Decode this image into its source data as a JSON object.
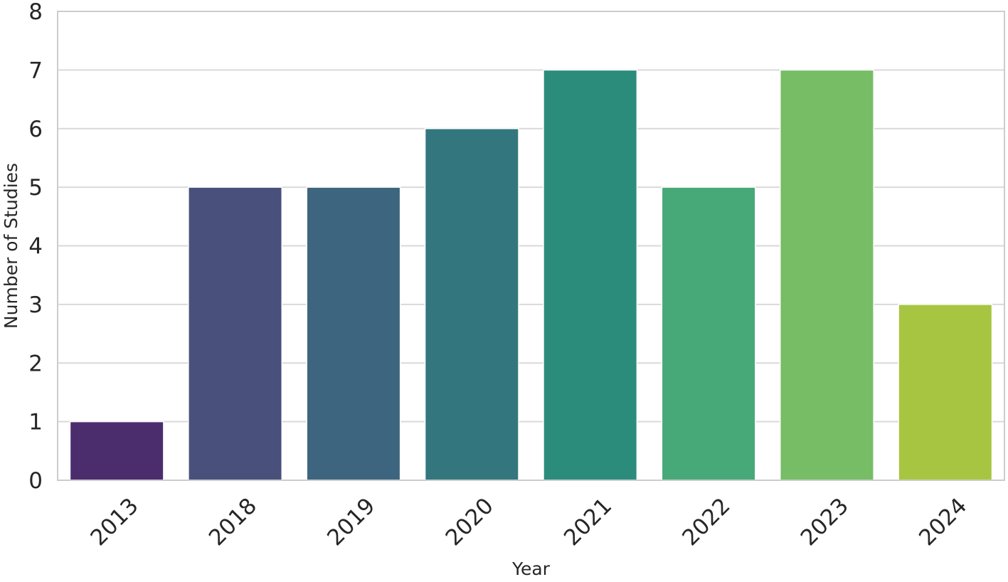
{
  "chart_data": {
    "type": "bar",
    "title": "",
    "xlabel": "Year",
    "ylabel": "Number of Studies",
    "categories": [
      "2013",
      "2018",
      "2019",
      "2020",
      "2021",
      "2022",
      "2023",
      "2024"
    ],
    "values": [
      1,
      5,
      5,
      6,
      7,
      5,
      7,
      3
    ],
    "colors": [
      "#4b2d6e",
      "#48507b",
      "#3d657f",
      "#33767e",
      "#2c8c7c",
      "#47a878",
      "#76bd66",
      "#a8c541"
    ],
    "ylim": [
      0,
      8
    ],
    "yticks": [
      "0",
      "1",
      "2",
      "3",
      "4",
      "5",
      "6",
      "7",
      "8"
    ],
    "grid": true,
    "gridColor": "#d9d9d9",
    "frameColor": "#cccccc"
  }
}
